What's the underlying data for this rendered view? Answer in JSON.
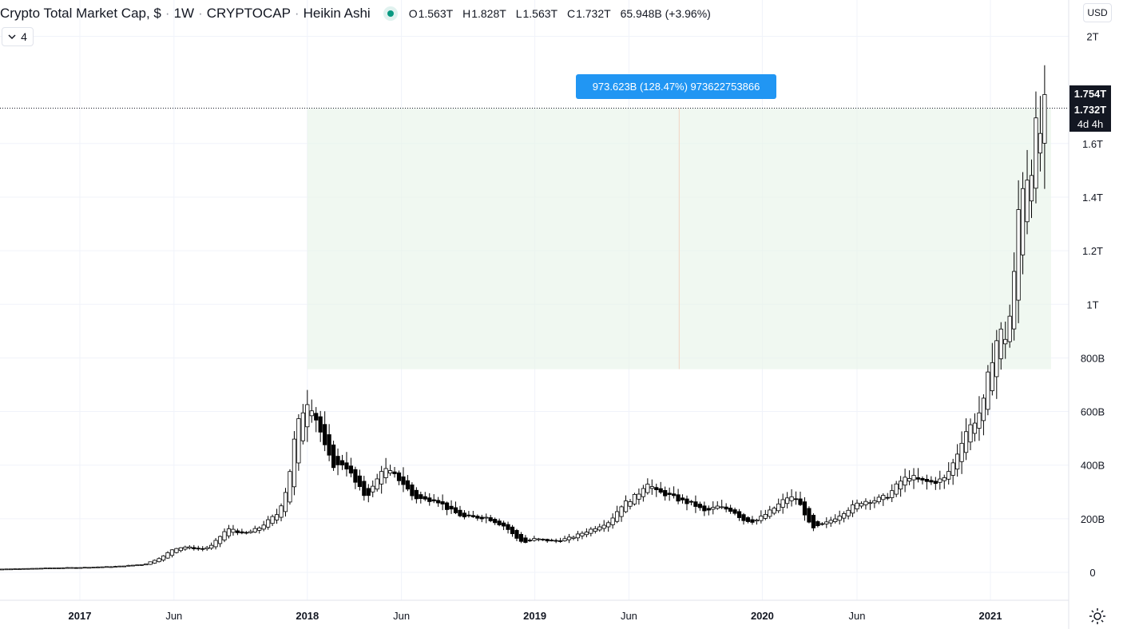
{
  "header": {
    "symbol_title": "Crypto Total Market Cap, $",
    "interval": "1W",
    "exchange": "CRYPTOCAP",
    "chart_style": "Heikin Ashi",
    "status_color": "#089981",
    "ohlc": {
      "open_label": "O",
      "open": "1.563T",
      "high_label": "H",
      "high": "1.828T",
      "low_label": "L",
      "low": "1.563T",
      "close_label": "C",
      "close": "1.732T",
      "change": "65.948B (+3.96%)"
    }
  },
  "collapse_button": {
    "icon": "chevron-down-icon",
    "count": "4"
  },
  "currency_button": {
    "label": "USD"
  },
  "measure_tooltip": {
    "text": "973.623B (128.47%) 973622753866",
    "color": "#2196f3"
  },
  "price_labels": {
    "high": "1.754T",
    "last": "1.732T",
    "countdown": "4d 4h"
  },
  "settings_icon": "gear-icon",
  "colors": {
    "up_body": "#ffffff",
    "down_body": "#000000",
    "wick": "#000000",
    "range_fill": "#e8f5e9",
    "grid": "#f0f3fa"
  },
  "chart_data": {
    "type": "candlestick",
    "style": "Heikin Ashi",
    "unit": "USD",
    "y_ticks": [
      "0",
      "200B",
      "400B",
      "600B",
      "800B",
      "1T",
      "1.2T",
      "1.4T",
      "1.6T",
      "2T"
    ],
    "y_tick_values": [
      0,
      200,
      400,
      600,
      800,
      1000,
      1200,
      1400,
      1600,
      2000
    ],
    "y_unit_scale": "billions",
    "ylim": [
      -100,
      2100
    ],
    "x_ticks": [
      "2017",
      "Jun",
      "2018",
      "Jun",
      "2019",
      "Jun",
      "2020",
      "Jun",
      "2021"
    ],
    "x_tick_dates": [
      "2017-01-01",
      "2017-06-01",
      "2018-01-01",
      "2018-06-01",
      "2019-01-01",
      "2019-06-01",
      "2020-01-01",
      "2020-06-01",
      "2021-01-01"
    ],
    "xlim": [
      "2016-06-20",
      "2021-05-20"
    ],
    "grid": true,
    "series_approx_close": [
      [
        "2016-06-20",
        11
      ],
      [
        "2016-09-01",
        12
      ],
      [
        "2016-12-01",
        17
      ],
      [
        "2017-01-01",
        18
      ],
      [
        "2017-03-01",
        22
      ],
      [
        "2017-04-15",
        30
      ],
      [
        "2017-05-15",
        60
      ],
      [
        "2017-06-01",
        90
      ],
      [
        "2017-06-20",
        95
      ],
      [
        "2017-07-15",
        85
      ],
      [
        "2017-08-01",
        100
      ],
      [
        "2017-08-20",
        150
      ],
      [
        "2017-09-01",
        165
      ],
      [
        "2017-09-20",
        140
      ],
      [
        "2017-10-15",
        165
      ],
      [
        "2017-11-15",
        220
      ],
      [
        "2017-12-01",
        330
      ],
      [
        "2017-12-10",
        480
      ],
      [
        "2017-12-20",
        580
      ],
      [
        "2018-01-01",
        640
      ],
      [
        "2018-01-08",
        620
      ],
      [
        "2018-01-20",
        540
      ],
      [
        "2018-02-01",
        440
      ],
      [
        "2018-02-15",
        390
      ],
      [
        "2018-03-01",
        410
      ],
      [
        "2018-03-20",
        330
      ],
      [
        "2018-04-05",
        280
      ],
      [
        "2018-04-20",
        330
      ],
      [
        "2018-05-01",
        390
      ],
      [
        "2018-05-15",
        370
      ],
      [
        "2018-06-01",
        340
      ],
      [
        "2018-06-20",
        280
      ],
      [
        "2018-07-10",
        270
      ],
      [
        "2018-07-25",
        275
      ],
      [
        "2018-08-15",
        235
      ],
      [
        "2018-09-10",
        205
      ],
      [
        "2018-10-15",
        205
      ],
      [
        "2018-11-15",
        170
      ],
      [
        "2018-12-01",
        130
      ],
      [
        "2018-12-15",
        110
      ],
      [
        "2019-01-01",
        125
      ],
      [
        "2019-02-01",
        115
      ],
      [
        "2019-03-01",
        130
      ],
      [
        "2019-04-01",
        160
      ],
      [
        "2019-05-01",
        190
      ],
      [
        "2019-05-20",
        250
      ],
      [
        "2019-06-15",
        290
      ],
      [
        "2019-06-30",
        340
      ],
      [
        "2019-07-15",
        300
      ],
      [
        "2019-08-01",
        290
      ],
      [
        "2019-08-20",
        270
      ],
      [
        "2019-09-15",
        250
      ],
      [
        "2019-10-01",
        225
      ],
      [
        "2019-10-20",
        245
      ],
      [
        "2019-11-15",
        230
      ],
      [
        "2019-12-01",
        195
      ],
      [
        "2019-12-20",
        190
      ],
      [
        "2020-01-15",
        230
      ],
      [
        "2020-02-10",
        280
      ],
      [
        "2020-02-25",
        275
      ],
      [
        "2020-03-10",
        215
      ],
      [
        "2020-03-20",
        160
      ],
      [
        "2020-04-10",
        180
      ],
      [
        "2020-05-01",
        210
      ],
      [
        "2020-05-20",
        240
      ],
      [
        "2020-06-10",
        265
      ],
      [
        "2020-07-01",
        270
      ],
      [
        "2020-07-20",
        285
      ],
      [
        "2020-08-10",
        340
      ],
      [
        "2020-08-25",
        360
      ],
      [
        "2020-09-10",
        340
      ],
      [
        "2020-09-30",
        335
      ],
      [
        "2020-10-20",
        350
      ],
      [
        "2020-11-05",
        420
      ],
      [
        "2020-11-20",
        520
      ],
      [
        "2020-12-05",
        560
      ],
      [
        "2020-12-20",
        620
      ],
      [
        "2021-01-01",
        780
      ],
      [
        "2021-01-15",
        900
      ],
      [
        "2021-01-25",
        880
      ],
      [
        "2021-02-05",
        1000
      ],
      [
        "2021-02-15",
        1350
      ],
      [
        "2021-02-25",
        1500
      ],
      [
        "2021-03-05",
        1470
      ],
      [
        "2021-03-15",
        1650
      ],
      [
        "2021-03-22",
        1640
      ],
      [
        "2021-03-29",
        1732
      ]
    ],
    "measure_range": {
      "from_date": "2018-01-01",
      "to_date": "2021-03-29",
      "low": 758,
      "high": 1732
    },
    "last_price_line": 1732
  }
}
